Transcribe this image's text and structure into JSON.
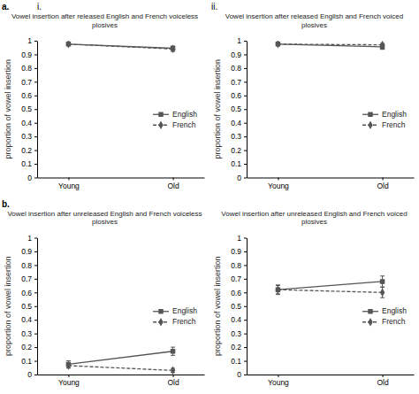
{
  "chart_data": [
    {
      "type": "line",
      "title": "Vowel insertion after released English and French voiceless plosives",
      "ylabel": "proportion of vowel insertion",
      "categories": [
        "Young",
        "Old"
      ],
      "series": [
        {
          "name": "English",
          "color": "#555555",
          "marker": "square",
          "line_style": "solid",
          "values": [
            0.975,
            0.945
          ],
          "errors": [
            0.008,
            0.015
          ]
        },
        {
          "name": "French",
          "color": "#555555",
          "marker": "diamond",
          "line_style": "dashed",
          "values": [
            0.975,
            0.94
          ],
          "errors": [
            0.008,
            0.018
          ]
        }
      ],
      "ylim": [
        0,
        1
      ],
      "yticks": [
        0,
        0.1,
        0.2,
        0.3,
        0.4,
        0.5,
        0.6,
        0.7,
        0.8,
        0.9,
        1
      ],
      "legend": "center right",
      "annotations": [
        "a.",
        "i."
      ]
    },
    {
      "type": "line",
      "title": "Vowel insertion after released English and French voiced plosives",
      "ylabel": "proportion of vowel insertion",
      "categories": [
        "Young",
        "Old"
      ],
      "series": [
        {
          "name": "English",
          "color": "#555555",
          "marker": "square",
          "line_style": "solid",
          "values": [
            0.975,
            0.955
          ],
          "errors": [
            0.008,
            0.018
          ]
        },
        {
          "name": "French",
          "color": "#555555",
          "marker": "diamond",
          "line_style": "dashed",
          "values": [
            0.975,
            0.97
          ],
          "errors": [
            0.008,
            0.01
          ]
        }
      ],
      "ylim": [
        0,
        1
      ],
      "yticks": [
        0,
        0.1,
        0.2,
        0.3,
        0.4,
        0.5,
        0.6,
        0.7,
        0.8,
        0.9,
        1
      ],
      "legend": "center right",
      "annotations": [
        "ii."
      ]
    },
    {
      "type": "line",
      "title": "Vowel insertion after unreleased English and French voiceless plosives",
      "ylabel": "proportion of vowel insertion",
      "categories": [
        "Young",
        "Old"
      ],
      "series": [
        {
          "name": "English",
          "color": "#555555",
          "marker": "square",
          "line_style": "solid",
          "values": [
            0.075,
            0.17
          ],
          "errors": [
            0.025,
            0.03
          ]
        },
        {
          "name": "French",
          "color": "#555555",
          "marker": "diamond",
          "line_style": "dashed",
          "values": [
            0.065,
            0.03
          ],
          "errors": [
            0.018,
            0.015
          ]
        }
      ],
      "ylim": [
        0,
        1
      ],
      "yticks": [
        0,
        0.1,
        0.2,
        0.3,
        0.4,
        0.5,
        0.6,
        0.7,
        0.8,
        0.9,
        1
      ],
      "legend": "center right",
      "annotations": [
        "b."
      ]
    },
    {
      "type": "line",
      "title": "Vowel insertion after unreleased English and French voiced plosives",
      "ylabel": "proportion of vowel insertion",
      "categories": [
        "Young",
        "Old"
      ],
      "series": [
        {
          "name": "English",
          "color": "#555555",
          "marker": "square",
          "line_style": "solid",
          "values": [
            0.62,
            0.68
          ],
          "errors": [
            0.035,
            0.04
          ]
        },
        {
          "name": "French",
          "color": "#555555",
          "marker": "diamond",
          "line_style": "dashed",
          "values": [
            0.62,
            0.6
          ],
          "errors": [
            0.03,
            0.038
          ]
        }
      ],
      "ylim": [
        0,
        1
      ],
      "yticks": [
        0,
        0.1,
        0.2,
        0.3,
        0.4,
        0.5,
        0.6,
        0.7,
        0.8,
        0.9,
        1
      ],
      "legend": "center right"
    }
  ]
}
